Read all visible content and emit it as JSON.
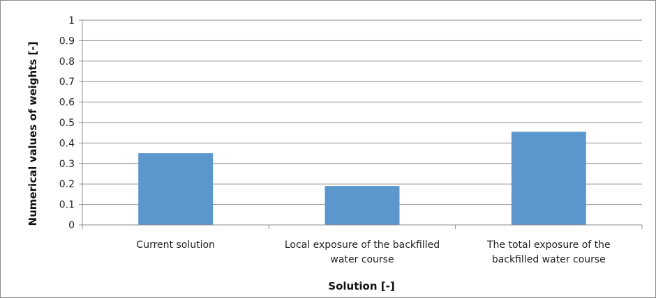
{
  "chart_data": {
    "type": "bar",
    "categories": [
      [
        "Current solution"
      ],
      [
        "Local exposure of the backfilled",
        "water course"
      ],
      [
        "The total exposure of the",
        "backfilled water course"
      ]
    ],
    "values": [
      0.35,
      0.19,
      0.455
    ],
    "xlabel": "Solution [-]",
    "ylabel": "Numerical values of weights [-]",
    "ylim": [
      0,
      1
    ],
    "yticks": [
      "0",
      "0.1",
      "0.2",
      "0.3",
      "0.4",
      "0.5",
      "0.6",
      "0.7",
      "0.8",
      "0.9",
      "1"
    ],
    "grid": true,
    "legend": "none",
    "colors": {
      "bar": "#5b96cc",
      "grid": "#8c8c8c",
      "axis": "#8c8c8c"
    }
  }
}
